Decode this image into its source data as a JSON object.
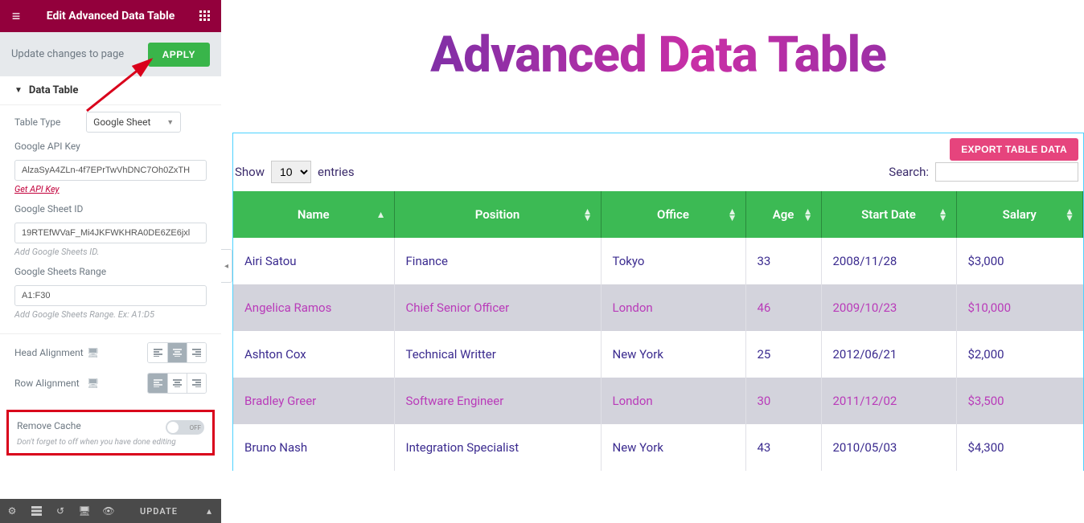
{
  "sidebar": {
    "title": "Edit Advanced Data Table",
    "update_bar": {
      "text": "Update changes to page",
      "apply": "APPLY"
    },
    "section": {
      "label": "Data Table"
    },
    "table_type": {
      "label": "Table Type",
      "value": "Google Sheet"
    },
    "api_key": {
      "label": "Google API Key",
      "value": "AlzaSyA4ZLn-4f7EPrTwVhDNC7Oh0ZxTH",
      "hint": "Get API Key"
    },
    "sheet_id": {
      "label": "Google Sheet ID",
      "value": "19RTEfWVaF_Mi4JKFWKHRA0DE6ZE6jxl",
      "hint": "Add Google Sheets ID."
    },
    "range": {
      "label": "Google Sheets Range",
      "value": "A1:F30",
      "hint": "Add Google Sheets Range. Ex: A1:D5"
    },
    "head_align": {
      "label": "Head Alignment"
    },
    "row_align": {
      "label": "Row Alignment"
    },
    "cache": {
      "label": "Remove Cache",
      "toggle": "OFF",
      "hint": "Don't forget to off when you have done editing"
    },
    "footer": {
      "update": "UPDATE"
    }
  },
  "main": {
    "hero": "Advanced Data Table",
    "export": "EXPORT TABLE DATA",
    "show_label": "Show",
    "entries_value": "10",
    "entries_label": "entries",
    "search_label": "Search:",
    "columns": [
      "Name",
      "Position",
      "Office",
      "Age",
      "Start Date",
      "Salary"
    ],
    "col_widths": [
      "200px",
      "257px",
      "180px",
      "94px",
      "168px",
      "auto"
    ],
    "rows": [
      [
        "Airi Satou",
        "Finance",
        "Tokyo",
        "33",
        "2008/11/28",
        "$3,000"
      ],
      [
        "Angelica Ramos",
        "Chief Senior Officer",
        "London",
        "46",
        "2009/10/23",
        "$10,000"
      ],
      [
        "Ashton Cox",
        "Technical Writter",
        "New York",
        "25",
        "2012/06/21",
        "$2,000"
      ],
      [
        "Bradley Greer",
        "Software Engineer",
        "London",
        "30",
        "2011/12/02",
        "$3,500"
      ],
      [
        "Bruno Nash",
        "Integration Specialist",
        "New York",
        "43",
        "2010/05/03",
        "$4,300"
      ]
    ]
  },
  "colors": {
    "brand": "#93003c",
    "green_btn": "#39b54a",
    "table_header": "#3cba54",
    "export": "#e6447d",
    "row_odd_text": "#3b2b8f",
    "row_even_text": "#b93bb9",
    "row_even_bg": "#d3d3dc",
    "annot": "#d9001b"
  }
}
